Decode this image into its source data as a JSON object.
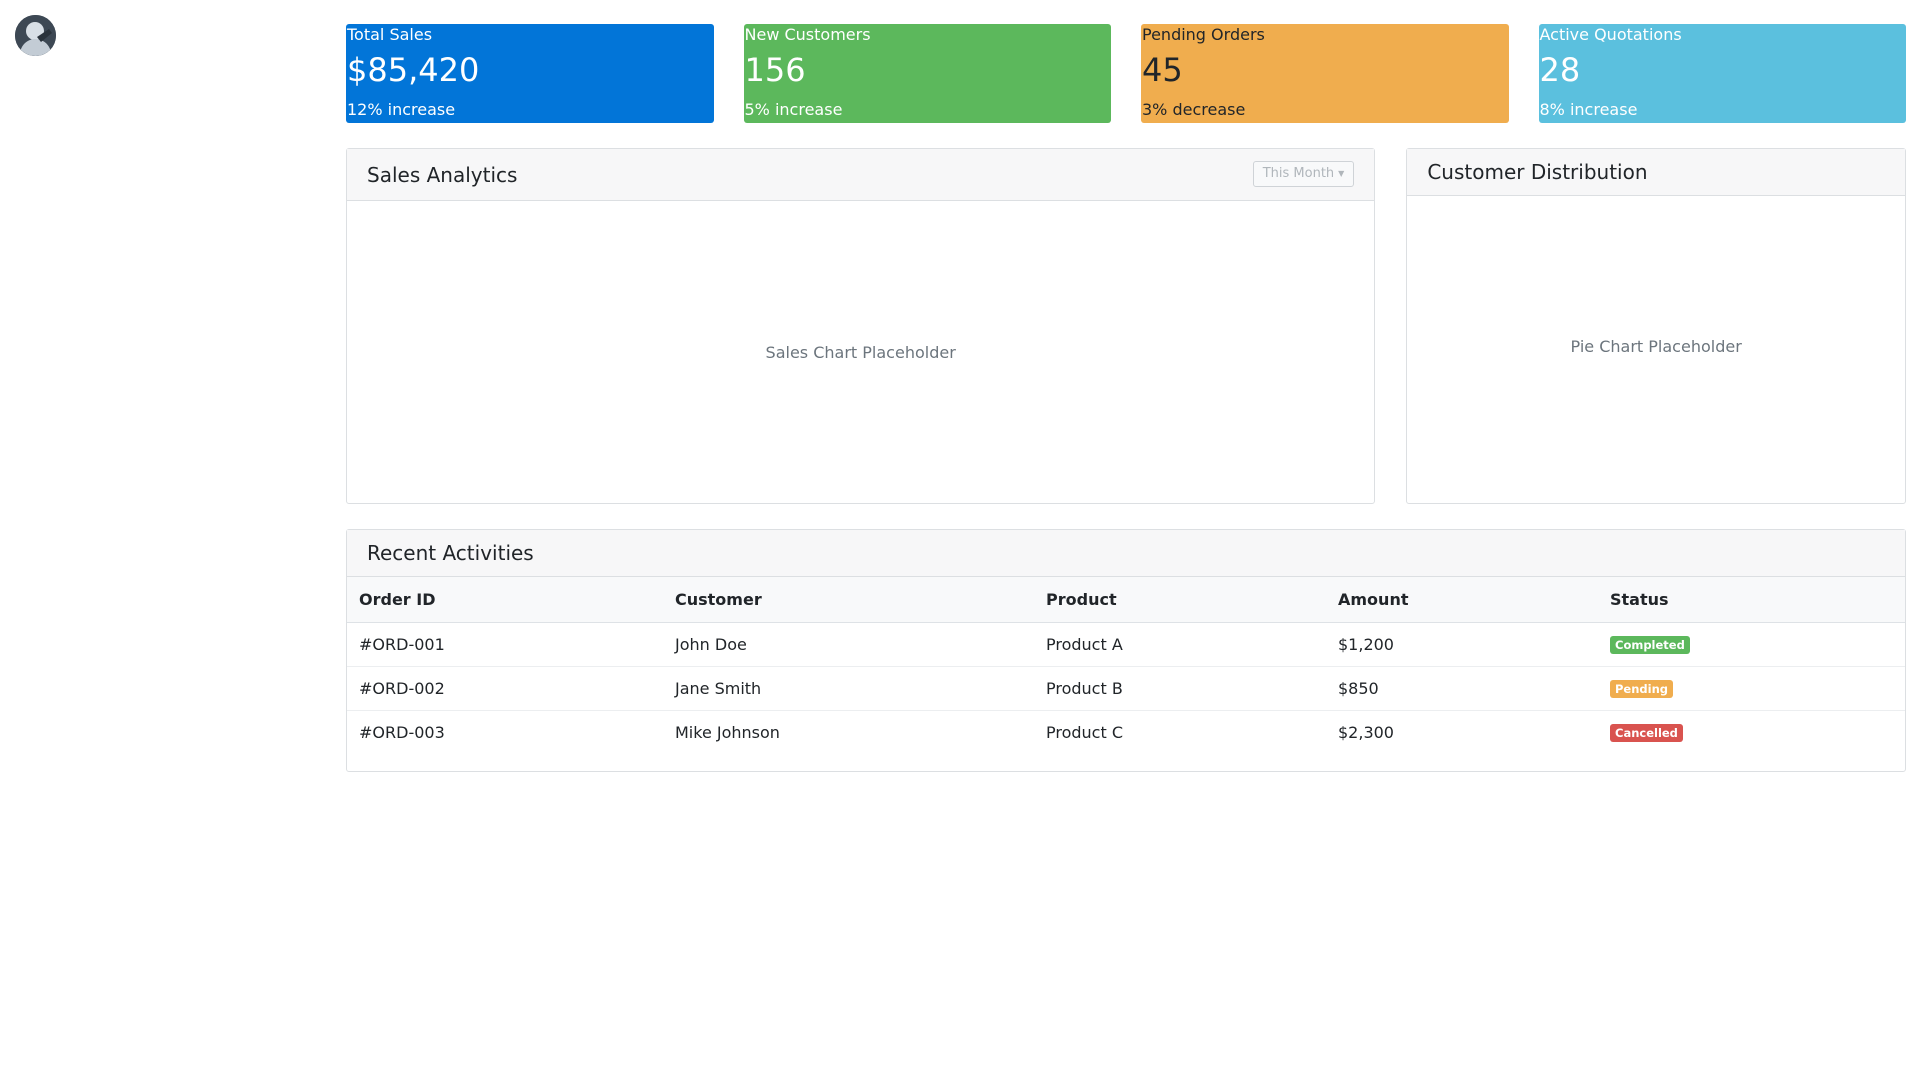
{
  "cards": [
    {
      "title": "Total Sales",
      "value": "$85,420",
      "change": "12% increase",
      "color": "#0275d8"
    },
    {
      "title": "New Customers",
      "value": "156",
      "change": "5% increase",
      "color": "#5cb85c"
    },
    {
      "title": "Pending Orders",
      "value": "45",
      "change": "3% decrease",
      "color": "#f0ad4e"
    },
    {
      "title": "Active Quotations",
      "value": "28",
      "change": "8% increase",
      "color": "#5bc0de"
    }
  ],
  "sales_panel": {
    "title": "Sales Analytics",
    "dropdown": "This Month",
    "dropdown_icon": "caret-down-icon",
    "placeholder": "Sales Chart Placeholder"
  },
  "distribution_panel": {
    "title": "Customer Distribution",
    "placeholder": "Pie Chart Placeholder"
  },
  "activities": {
    "title": "Recent Activities",
    "columns": [
      "Order ID",
      "Customer",
      "Product",
      "Amount",
      "Status"
    ],
    "rows": [
      {
        "order_id": "#ORD-001",
        "customer": "John Doe",
        "product": "Product A",
        "amount": "$1,200",
        "status": "Completed",
        "status_color": "#5cb85c"
      },
      {
        "order_id": "#ORD-002",
        "customer": "Jane Smith",
        "product": "Product B",
        "amount": "$850",
        "status": "Pending",
        "status_color": "#f0ad4e"
      },
      {
        "order_id": "#ORD-003",
        "customer": "Mike Johnson",
        "product": "Product C",
        "amount": "$2,300",
        "status": "Cancelled",
        "status_color": "#d9534f"
      }
    ]
  }
}
